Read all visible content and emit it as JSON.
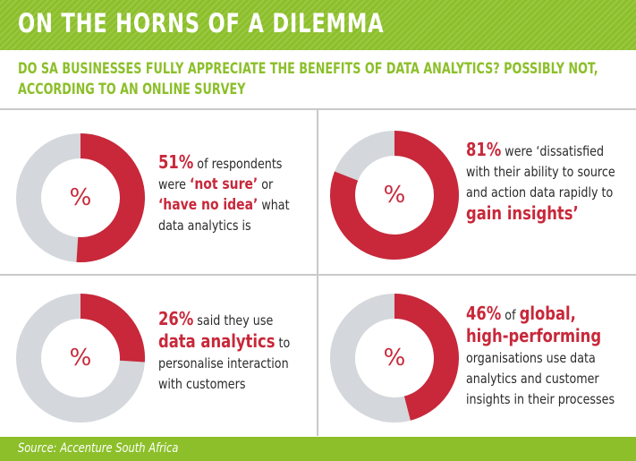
{
  "header": {
    "title": "ON THE HORNS OF A DILEMMA"
  },
  "subtitle": "DO SA BUSINESSES FULLY APPRECIATE THE BENEFITS OF DATA ANALYTICS? POSSIBLY NOT, ACCORDING TO AN ONLINE SURVEY",
  "footer": {
    "source": "Source: Accenture South Africa"
  },
  "colors": {
    "accent_green": "#8cbf2a",
    "highlight_red": "#c8283a",
    "ring_grey": "#d4d7db"
  },
  "chart_data": [
    {
      "type": "pie",
      "values": [
        51,
        49
      ],
      "center_label": "%",
      "text": {
        "p1_hl": "51%",
        "p1_a": " of respondents were ",
        "p1_b": "‘not sure’",
        "p1_c": " or ",
        "p1_d": "‘have no idea’",
        "p1_e": " what data analytics is"
      }
    },
    {
      "type": "pie",
      "values": [
        81,
        19
      ],
      "center_label": "%",
      "text": {
        "p1_hl": "81%",
        "p1_a": " were ‘dissatisfied with their ability to source and action data rapidly to ",
        "p1_b": "gain insights’"
      }
    },
    {
      "type": "pie",
      "values": [
        26,
        74
      ],
      "center_label": "%",
      "text": {
        "p1_hl": "26%",
        "p1_a": " said they use ",
        "p1_b": "data analytics",
        "p1_c": " to personalise interaction with customers"
      }
    },
    {
      "type": "pie",
      "values": [
        46,
        54
      ],
      "center_label": "%",
      "text": {
        "p1_hl": "46%",
        "p1_a": " of ",
        "p1_b": "global, high-performing",
        "p1_c": " organisations use data analytics and customer insights in their processes"
      }
    }
  ]
}
